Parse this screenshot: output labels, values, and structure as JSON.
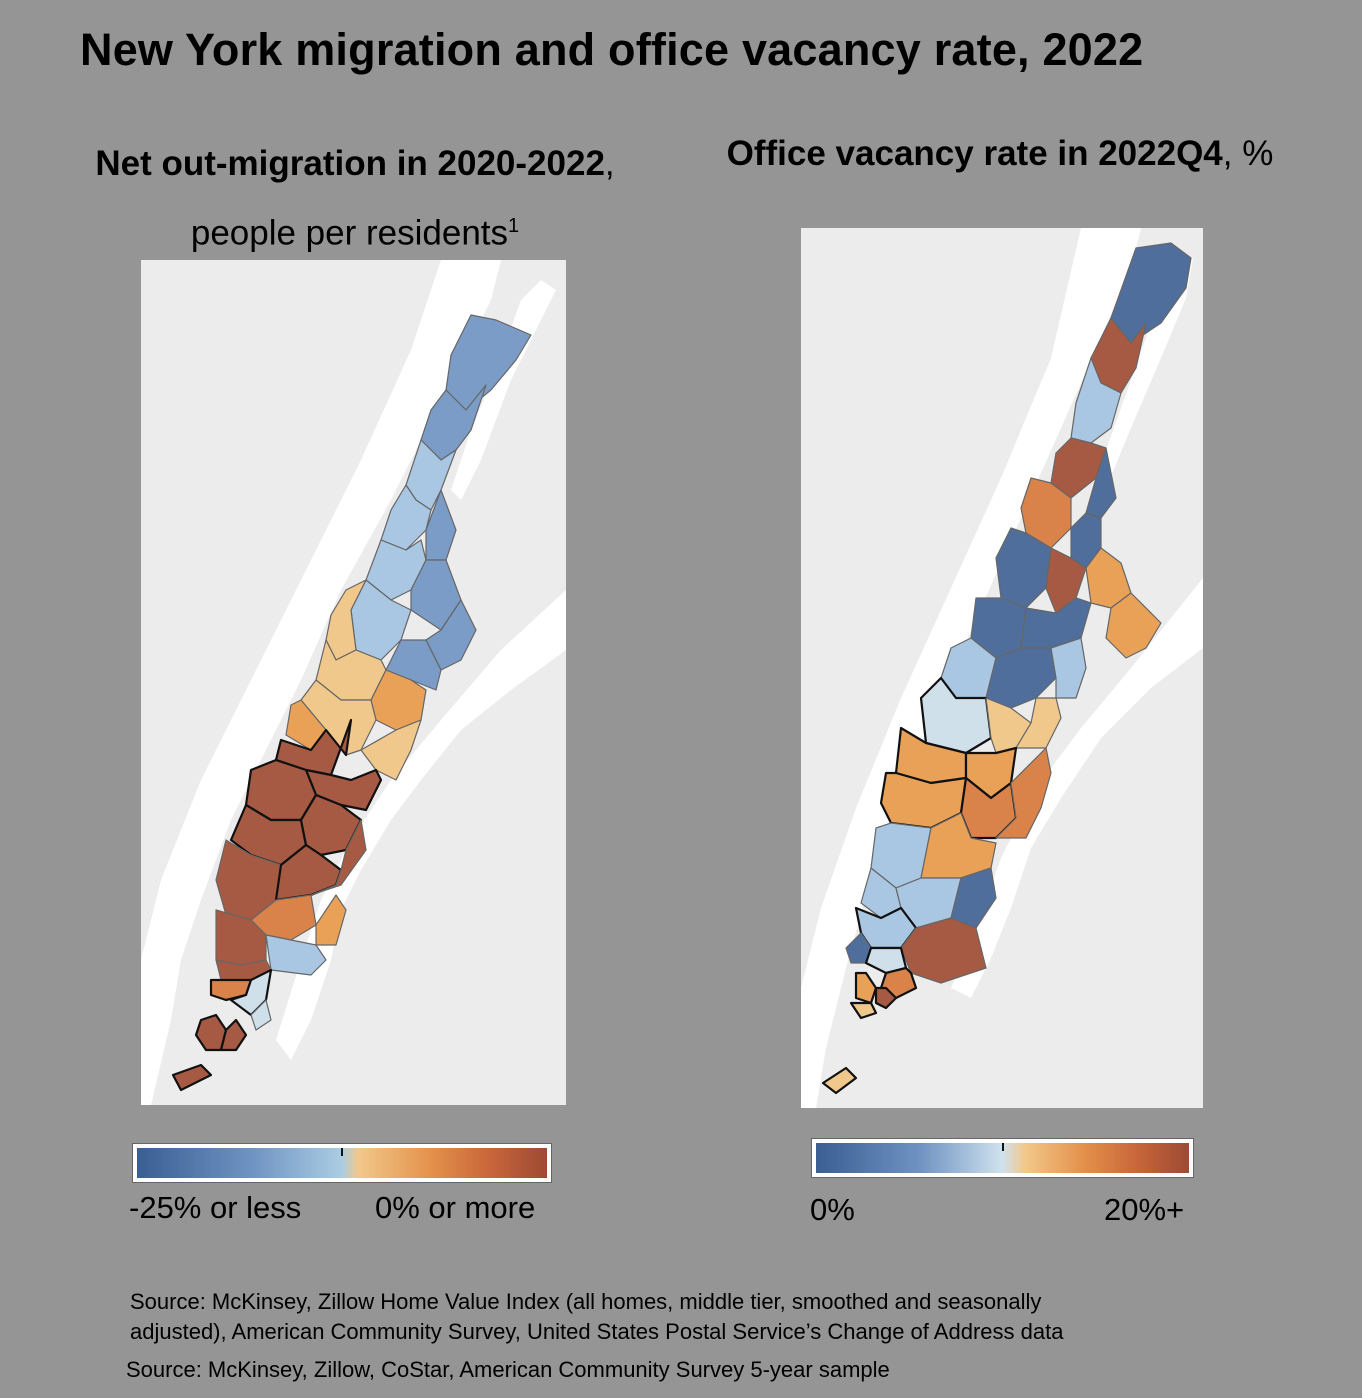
{
  "title": "New York migration and office vacancy rate, 2022",
  "left_panel": {
    "subtitle_bold": "Net out-migration in 2020-2022",
    "subtitle_rest": ",",
    "subtitle_line2": "people per residents",
    "footnote_marker": "1",
    "legend_min": "-25% or less",
    "legend_max": "0% or more"
  },
  "right_panel": {
    "subtitle_bold": "Office vacancy rate in 2022Q4",
    "subtitle_rest": ", %",
    "legend_min": "0%",
    "legend_max": "20%+"
  },
  "colors": {
    "dark_blue": "#4f6e9c",
    "mid_blue": "#7b9cc6",
    "light_blue": "#a9c7e2",
    "very_light_blue": "#cfe0ea",
    "light_orange": "#f0c88c",
    "mid_orange": "#e9a158",
    "orange": "#d9824a",
    "dark_orange": "#a65a43",
    "land": "#ececec",
    "water": "#ffffff"
  },
  "sources": [
    "Source: McKinsey, Zillow Home Value Index (all homes, middle tier, smoothed and seasonally",
    "adjusted), American Community Survey, United States Postal Service’s Change of Address data",
    "Source: McKinsey, Zillow, CoStar, American Community Survey 5-year sample"
  ]
}
